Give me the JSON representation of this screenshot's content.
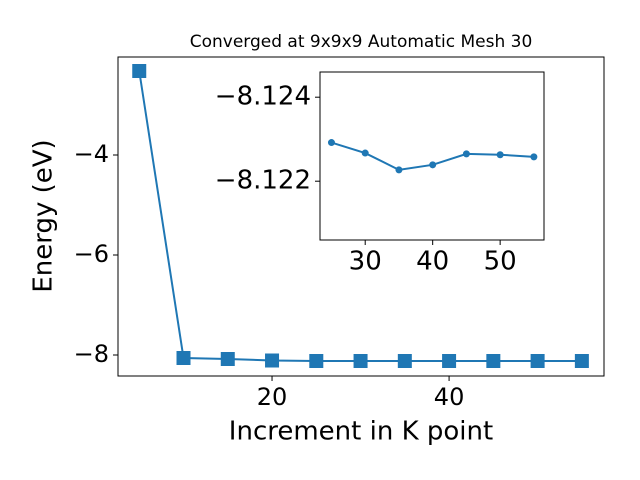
{
  "chart_data": [
    {
      "type": "line",
      "title": "Converged at 9x9x9 Automatic Mesh 30",
      "x_label": "Increment in K point",
      "y_label": "Energy (eV)",
      "x": [
        5,
        10,
        15,
        20,
        25,
        30,
        35,
        40,
        45,
        50,
        55
      ],
      "values": [
        -2.32,
        -8.06,
        -8.08,
        -8.11,
        -8.12,
        -8.12,
        -8.12,
        -8.12,
        -8.12,
        -8.12,
        -8.12
      ],
      "color": "#1f77b4",
      "marker": "square",
      "xlim": [
        2.6,
        57.5
      ],
      "ylim": [
        -8.42,
        -2.04
      ],
      "xticks": [
        20,
        40
      ],
      "yticks": [
        {
          "value": -8,
          "label": "−8"
        },
        {
          "value": -6,
          "label": "−6"
        },
        {
          "value": -4,
          "label": "−4"
        }
      ]
    },
    {
      "type": "line",
      "x": [
        25,
        30,
        35,
        40,
        45,
        50,
        55
      ],
      "values": [
        -8.12292,
        -8.12267,
        -8.12227,
        -8.12239,
        -8.12265,
        -8.12263,
        -8.12258
      ],
      "color": "#1f77b4",
      "marker": "circle",
      "xlim": [
        23.3,
        56.5
      ],
      "ylim": [
        -8.1206,
        -8.1246
      ],
      "xticks": [
        30,
        40,
        50
      ],
      "yticks": [
        {
          "value": -8.124,
          "label": "−8.124"
        },
        {
          "value": -8.122,
          "label": "−8.122"
        }
      ]
    }
  ]
}
